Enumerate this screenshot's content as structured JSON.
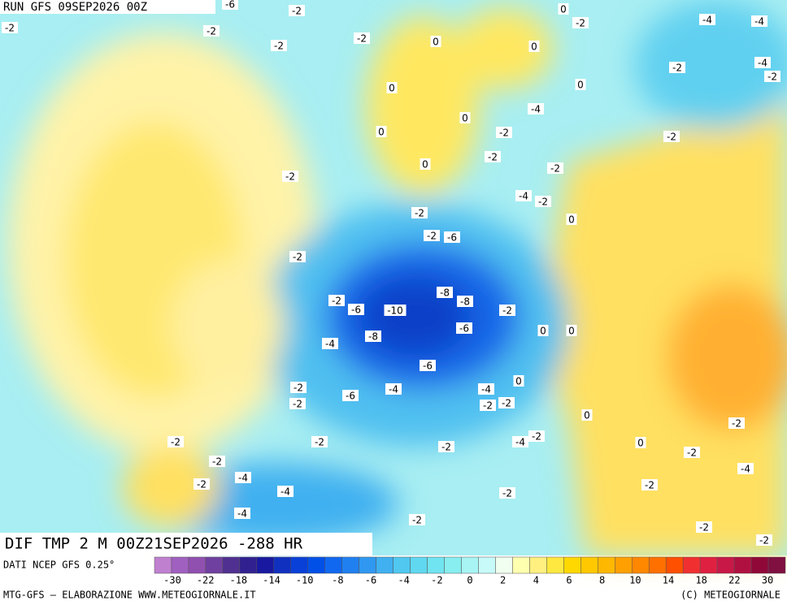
{
  "header": {
    "title": "RUN GFS 09SEP2026 00Z"
  },
  "map": {
    "title": "DIF TMP 2 M 00Z21SEP2026 -288 HR",
    "contour_labels": [
      -2,
      -2,
      -2,
      -2,
      -2,
      -6,
      0,
      -2,
      -4,
      -4,
      0,
      0,
      -4,
      -2,
      -2,
      0,
      0,
      -4,
      0,
      0,
      -2,
      -2,
      -2,
      0,
      -2,
      -2,
      -4,
      -2,
      0,
      -2,
      -2,
      -6,
      -2,
      -2,
      -6,
      -10,
      -8,
      -8,
      -2,
      -8,
      -6,
      0,
      0,
      -4,
      -6,
      0,
      -2,
      -4,
      -4,
      -6,
      -2,
      -2,
      -2,
      0,
      -2,
      -2,
      -2,
      -2,
      -4,
      -2,
      0,
      -2,
      -2,
      -4,
      -4,
      -2,
      -4,
      -2,
      -2,
      -4,
      -2,
      -2,
      -2
    ]
  },
  "footer": {
    "source": "DATI NCEP GFS 0.25°",
    "credit": "MTG-GFS — ELABORAZIONE WWW.METEOGIORNALE.IT",
    "copyright": "(C) METEOGIORNALE"
  },
  "colorbar": {
    "colors": [
      "#c080d0",
      "#a060c0",
      "#9050b0",
      "#7040a0",
      "#503090",
      "#302090",
      "#1818a0",
      "#1030c0",
      "#0840d8",
      "#0050e8",
      "#1068f0",
      "#2080f0",
      "#3098f0",
      "#40b0f0",
      "#50c8f0",
      "#60d8f0",
      "#70e4f0",
      "#88eef0",
      "#a8f4f4",
      "#c8fafa",
      "#f0fff0",
      "#ffffb0",
      "#fff080",
      "#ffe840",
      "#ffd800",
      "#ffc800",
      "#ffb800",
      "#ffa000",
      "#ff8800",
      "#ff7000",
      "#ff5000",
      "#f03030",
      "#e02040",
      "#c81848",
      "#b01040",
      "#900838",
      "#801040"
    ],
    "ticks": [
      -30,
      -22,
      -18,
      -14,
      -10,
      -8,
      -6,
      -4,
      -2,
      0,
      2,
      4,
      6,
      8,
      10,
      14,
      18,
      22,
      30
    ]
  }
}
